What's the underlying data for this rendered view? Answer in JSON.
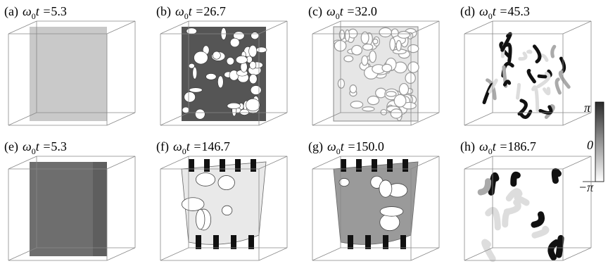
{
  "panels": [
    {
      "letter": "(a)",
      "omega": "ω",
      "sub": "0",
      "t": "t =",
      "value": "5.3"
    },
    {
      "letter": "(b)",
      "omega": "ω",
      "sub": "0",
      "t": "t =",
      "value": "26.7"
    },
    {
      "letter": "(c)",
      "omega": "ω",
      "sub": "0",
      "t": "t =",
      "value": "32.0"
    },
    {
      "letter": "(d)",
      "omega": "ω",
      "sub": "0",
      "t": "t =",
      "value": "45.3"
    },
    {
      "letter": "(e)",
      "omega": "ω",
      "sub": "0",
      "t": "t =",
      "value": "5.3"
    },
    {
      "letter": "(f)",
      "omega": "ω",
      "sub": "0",
      "t": "t =",
      "value": "146.7"
    },
    {
      "letter": "(g)",
      "omega": "ω",
      "sub": "0",
      "t": "t =",
      "value": "150.0"
    },
    {
      "letter": "(h)",
      "omega": "ω",
      "sub": "0",
      "t": "t =",
      "value": "186.7"
    }
  ],
  "colorbar": {
    "top": "π",
    "middle": "0",
    "bottom": "−π"
  }
}
